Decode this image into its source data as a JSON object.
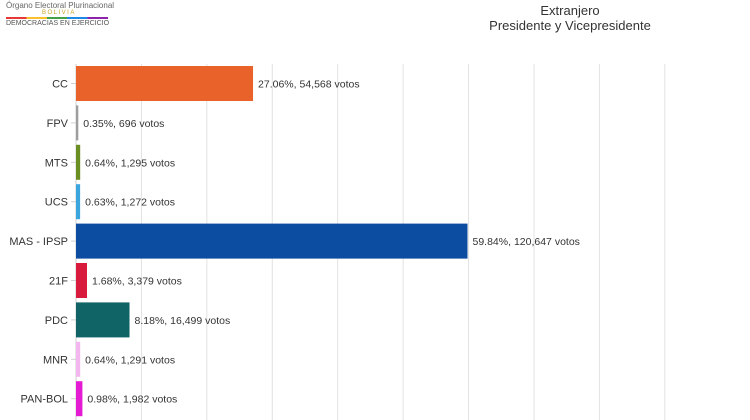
{
  "logo": {
    "line1": "Órgano Electoral Plurinacional",
    "line2": "BOLIVIA",
    "line3": "DEMOCRACIAS EN EJERCICIO"
  },
  "chart_data": {
    "type": "bar",
    "orientation": "horizontal",
    "title": "Extranjero",
    "subtitle": "Presidente y Vicepresidente",
    "grid": true,
    "xlim": [
      0,
      100
    ],
    "categories": [
      "CC",
      "FPV",
      "MTS",
      "UCS",
      "MAS - IPSP",
      "21F",
      "PDC",
      "MNR",
      "PAN-BOL"
    ],
    "values": [
      27.06,
      0.35,
      0.64,
      0.63,
      59.84,
      1.68,
      8.18,
      0.64,
      0.98
    ],
    "votes": [
      54568,
      696,
      1295,
      1272,
      120647,
      3379,
      16499,
      1291,
      1982
    ],
    "labels": [
      "27.06%,  54,568 votos",
      "0.35%,  696 votos",
      "0.64%,  1,295 votos",
      "0.63%,  1,272 votos",
      "59.84%,  120,647 votos",
      "1.68%,  3,379 votos",
      "8.18%,  16,499 votos",
      "0.64%,  1,291 votos",
      "0.98%,  1,982 votos"
    ],
    "colors": [
      "#e8622a",
      "#9e9e9e",
      "#6b8e23",
      "#3aa6dd",
      "#0d4da1",
      "#d81b3c",
      "#116466",
      "#f3b6ef",
      "#e51ad3"
    ]
  }
}
